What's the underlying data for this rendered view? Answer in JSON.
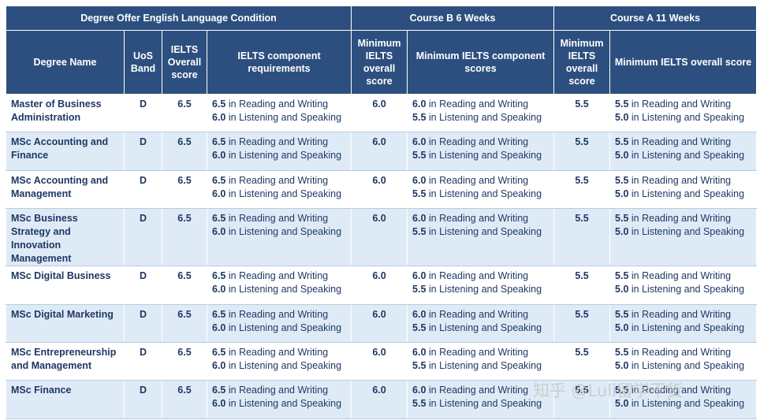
{
  "header": {
    "group_degree": "Degree Offer English Language Condition",
    "group_course_b": "Course B 6 Weeks",
    "group_course_a": "Course A 11 Weeks",
    "col_degree_name": "Degree Name",
    "col_uos_band": "UoS Band",
    "col_ielts_overall": "IELTS Overall score",
    "col_component_req": "IELTS component requirements",
    "col_b_min_overall": "Minimum IELTS overall score",
    "col_b_min_component": "Minimum IELTS component scores",
    "col_a_min_overall": "Minimum IELTS overall score",
    "col_a_min_overall_score": "Minimum IELTS overall score"
  },
  "text": {
    "rw": "in Reading and Writing",
    "ls": "in Listening and Speaking"
  },
  "rows": [
    {
      "name": "Master of Business Administration",
      "band": "D",
      "overall": "6.5",
      "req_rw": "6.5",
      "req_ls": "6.0",
      "b_overall": "6.0",
      "b_rw": "6.0",
      "b_ls": "5.5",
      "a_overall": "5.5",
      "a_rw": "5.5",
      "a_ls": "5.0"
    },
    {
      "name": "MSc Accounting and Finance",
      "band": "D",
      "overall": "6.5",
      "req_rw": "6.5",
      "req_ls": "6.0",
      "b_overall": "6.0",
      "b_rw": "6.0",
      "b_ls": "5.5",
      "a_overall": "5.5",
      "a_rw": "5.5",
      "a_ls": "5.0"
    },
    {
      "name": "MSc Accounting and Management",
      "band": "D",
      "overall": "6.5",
      "req_rw": "6.5",
      "req_ls": "6.0",
      "b_overall": "6.0",
      "b_rw": "6.0",
      "b_ls": "5.5",
      "a_overall": "5.5",
      "a_rw": "5.5",
      "a_ls": "5.0"
    },
    {
      "name": "MSc Business Strategy and Innovation Management",
      "band": "D",
      "overall": "6.5",
      "req_rw": "6.5",
      "req_ls": "6.0",
      "b_overall": "6.0",
      "b_rw": "6.0",
      "b_ls": "5.5",
      "a_overall": "5.5",
      "a_rw": "5.5",
      "a_ls": "5.0"
    },
    {
      "name": "MSc Digital Business",
      "band": "D",
      "overall": "6.5",
      "req_rw": "6.5",
      "req_ls": "6.0",
      "b_overall": "6.0",
      "b_rw": "6.0",
      "b_ls": "5.5",
      "a_overall": "5.5",
      "a_rw": "5.5",
      "a_ls": "5.0"
    },
    {
      "name": "MSc Digital Marketing",
      "band": "D",
      "overall": "6.5",
      "req_rw": "6.5",
      "req_ls": "6.0",
      "b_overall": "6.0",
      "b_rw": "6.0",
      "b_ls": "5.5",
      "a_overall": "5.5",
      "a_rw": "5.5",
      "a_ls": "5.0"
    },
    {
      "name": "MSc Entrepreneurship and Management",
      "band": "D",
      "overall": "6.5",
      "req_rw": "6.5",
      "req_ls": "6.0",
      "b_overall": "6.0",
      "b_rw": "6.0",
      "b_ls": "5.5",
      "a_overall": "5.5",
      "a_rw": "5.5",
      "a_ls": "5.0"
    },
    {
      "name": "MSc Finance",
      "band": "D",
      "overall": "6.5",
      "req_rw": "6.5",
      "req_ls": "6.0",
      "b_overall": "6.0",
      "b_rw": "6.0",
      "b_ls": "5.5",
      "a_overall": "5.5",
      "a_rw": "5.5",
      "a_ls": "5.0"
    }
  ],
  "watermark": "知乎 @Luli留学干货",
  "colors": {
    "header_bg": "#2d4f7f",
    "row_alt_bg": "#deebf7",
    "text": "#1f3864"
  }
}
